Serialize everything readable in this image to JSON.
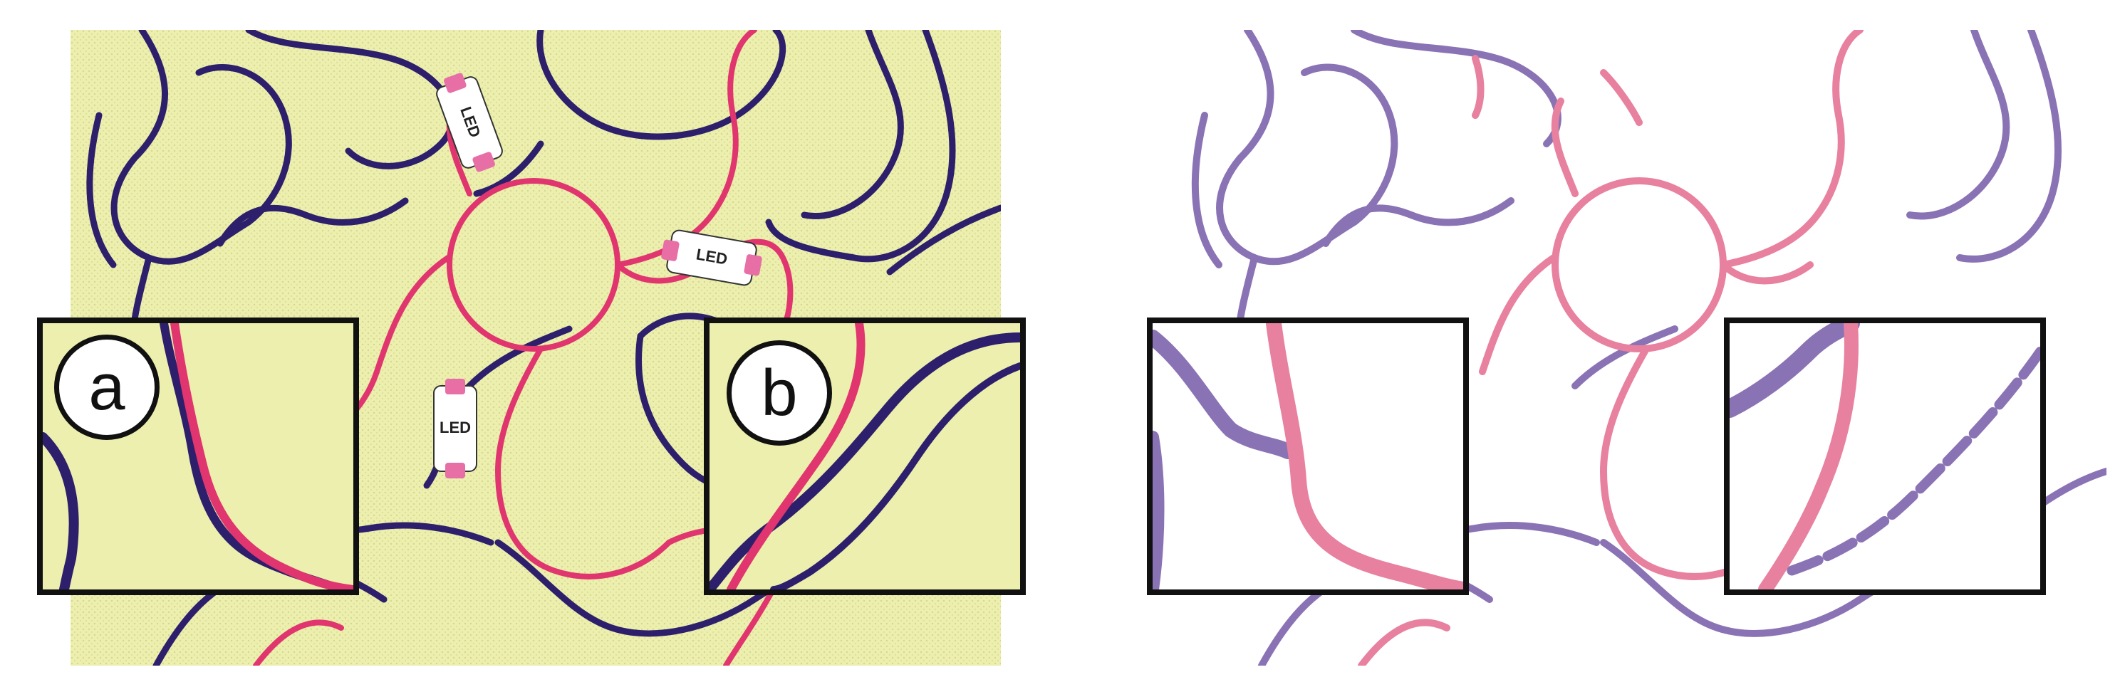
{
  "figure": {
    "inset_labels": [
      "a",
      "b"
    ],
    "led_label": "LED",
    "colors": {
      "fabric": "#ecefad",
      "blue_thread": "#2d1f6b",
      "pink_thread": "#e0356e",
      "processed_blue": "#8a73b4",
      "processed_pink": "#e8809f",
      "frame": "#111111"
    }
  },
  "left_panel": {
    "description_visible": false
  },
  "right_panel": {
    "description_visible": false
  }
}
